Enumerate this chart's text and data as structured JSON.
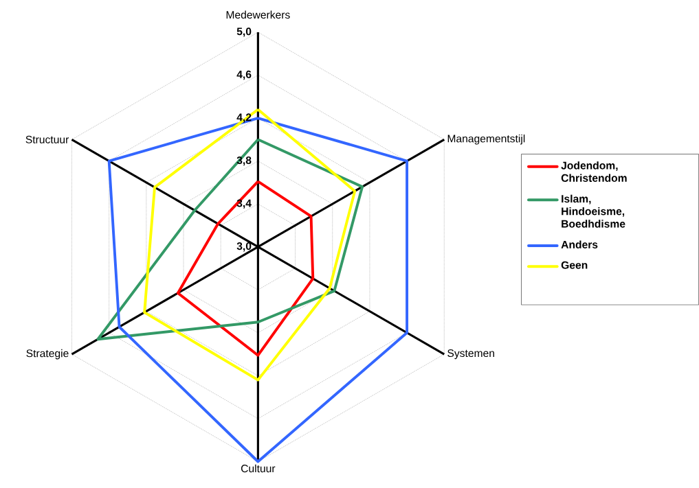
{
  "chart_data": {
    "type": "radar",
    "categories": [
      "Medewerkers",
      "Managementstijl",
      "Systemen",
      "Cultuur",
      "Strategie",
      "Structuur"
    ],
    "series": [
      {
        "name": "Jodendom, Christendom",
        "color": "#ff0000",
        "values": [
          3.61,
          3.57,
          3.59,
          4.01,
          3.86,
          3.43
        ]
      },
      {
        "name": "Islam, Hindoeisme, Boedhdisme",
        "color": "#339966",
        "values": [
          4.0,
          4.12,
          3.82,
          3.7,
          4.72,
          3.68
        ]
      },
      {
        "name": "Anders",
        "color": "#3366ff",
        "values": [
          4.2,
          4.6,
          4.6,
          5.0,
          4.49,
          4.6
        ]
      },
      {
        "name": "Geen",
        "color": "#ffff00",
        "values": [
          4.28,
          4.04,
          3.77,
          4.24,
          4.22,
          4.11
        ]
      }
    ],
    "ylim": [
      3.0,
      5.0
    ],
    "yticks": [
      {
        "value": 3.0,
        "label": "3,0"
      },
      {
        "value": 3.4,
        "label": "3,4"
      },
      {
        "value": 3.8,
        "label": "3,8"
      },
      {
        "value": 4.2,
        "label": "4,2"
      },
      {
        "value": 4.6,
        "label": "4,6"
      },
      {
        "value": 5.0,
        "label": "5,0"
      }
    ],
    "grid": true,
    "legend": "right",
    "marker": "none",
    "line_style": "solid"
  }
}
